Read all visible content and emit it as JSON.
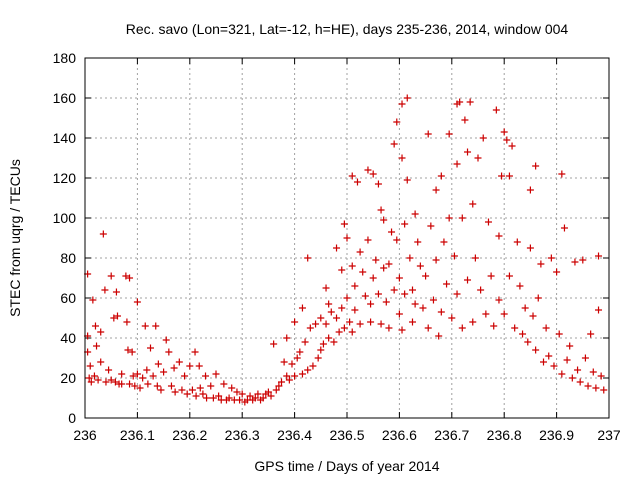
{
  "chart_data": {
    "type": "scatter",
    "title": "Rec. savo (Lon=321, Lat=-12, h=HE), days 235-236, 2014, window 004",
    "xlabel": "GPS time / Days of year 2014",
    "ylabel": "STEC from uqrg / TECUs",
    "xlim": [
      236,
      237
    ],
    "ylim": [
      0,
      180
    ],
    "grid": true,
    "marker": "plus",
    "color": "#cc0000",
    "x_ticks": [
      236,
      236.1,
      236.2,
      236.3,
      236.4,
      236.5,
      236.6,
      236.7,
      236.8,
      236.9,
      237
    ],
    "x_tick_labels": [
      "236",
      "236.1",
      "236.2",
      "236.3",
      "236.4",
      "236.5",
      "236.6",
      "236.7",
      "236.8",
      "236.9",
      "237"
    ],
    "y_ticks": [
      0,
      20,
      40,
      60,
      80,
      100,
      120,
      140,
      160,
      180
    ],
    "y_tick_labels": [
      "0",
      "20",
      "40",
      "60",
      "80",
      "100",
      "120",
      "140",
      "160",
      "180"
    ],
    "series": [
      {
        "name": "STEC",
        "points": [
          [
            236.005,
            72
          ],
          [
            236.005,
            41
          ],
          [
            236.005,
            33
          ],
          [
            236.01,
            26
          ],
          [
            236.008,
            20
          ],
          [
            236.012,
            18
          ],
          [
            236.015,
            59
          ],
          [
            236.02,
            46
          ],
          [
            236.022,
            36
          ],
          [
            236.018,
            21
          ],
          [
            236.025,
            19
          ],
          [
            236.03,
            43
          ],
          [
            236.03,
            28
          ],
          [
            236.035,
            92
          ],
          [
            236.038,
            64
          ],
          [
            236.04,
            18
          ],
          [
            236.045,
            24
          ],
          [
            236.05,
            71
          ],
          [
            236.05,
            19
          ],
          [
            236.055,
            50
          ],
          [
            236.058,
            18
          ],
          [
            236.06,
            63
          ],
          [
            236.062,
            51
          ],
          [
            236.065,
            17
          ],
          [
            236.07,
            22
          ],
          [
            236.07,
            17
          ],
          [
            236.078,
            71
          ],
          [
            236.08,
            48
          ],
          [
            236.082,
            34
          ],
          [
            236.085,
            70
          ],
          [
            236.085,
            17
          ],
          [
            236.09,
            33
          ],
          [
            236.092,
            21
          ],
          [
            236.095,
            16
          ],
          [
            236.1,
            58
          ],
          [
            236.1,
            22
          ],
          [
            236.105,
            15
          ],
          [
            236.11,
            20
          ],
          [
            236.115,
            46
          ],
          [
            236.118,
            24
          ],
          [
            236.12,
            17
          ],
          [
            236.125,
            35
          ],
          [
            236.13,
            21
          ],
          [
            236.135,
            46
          ],
          [
            236.138,
            16
          ],
          [
            236.14,
            27
          ],
          [
            236.145,
            14
          ],
          [
            236.15,
            23
          ],
          [
            236.155,
            39
          ],
          [
            236.16,
            33
          ],
          [
            236.165,
            16
          ],
          [
            236.17,
            25
          ],
          [
            236.172,
            13
          ],
          [
            236.18,
            28
          ],
          [
            236.185,
            14
          ],
          [
            236.19,
            21
          ],
          [
            236.195,
            12
          ],
          [
            236.2,
            26
          ],
          [
            236.205,
            14
          ],
          [
            236.21,
            33
          ],
          [
            236.212,
            11
          ],
          [
            236.218,
            26
          ],
          [
            236.22,
            15
          ],
          [
            236.225,
            12
          ],
          [
            236.23,
            21
          ],
          [
            236.232,
            10
          ],
          [
            236.24,
            16
          ],
          [
            236.245,
            10
          ],
          [
            236.25,
            22
          ],
          [
            236.255,
            11
          ],
          [
            236.26,
            9
          ],
          [
            236.265,
            17
          ],
          [
            236.27,
            9
          ],
          [
            236.275,
            10
          ],
          [
            236.28,
            15
          ],
          [
            236.285,
            9
          ],
          [
            236.29,
            13
          ],
          [
            236.295,
            9
          ],
          [
            236.3,
            12
          ],
          [
            236.305,
            8
          ],
          [
            236.31,
            9
          ],
          [
            236.315,
            11
          ],
          [
            236.32,
            9
          ],
          [
            236.325,
            10
          ],
          [
            236.33,
            12
          ],
          [
            236.335,
            9
          ],
          [
            236.34,
            10
          ],
          [
            236.345,
            12
          ],
          [
            236.35,
            13
          ],
          [
            236.355,
            11
          ],
          [
            236.36,
            37
          ],
          [
            236.365,
            14
          ],
          [
            236.37,
            16
          ],
          [
            236.375,
            18
          ],
          [
            236.38,
            28
          ],
          [
            236.385,
            21
          ],
          [
            236.385,
            40
          ],
          [
            236.39,
            19
          ],
          [
            236.395,
            27
          ],
          [
            236.4,
            48
          ],
          [
            236.4,
            21
          ],
          [
            236.405,
            30
          ],
          [
            236.41,
            33
          ],
          [
            236.415,
            55
          ],
          [
            236.415,
            22
          ],
          [
            236.42,
            38
          ],
          [
            236.425,
            80
          ],
          [
            236.425,
            24
          ],
          [
            236.43,
            45
          ],
          [
            236.435,
            26
          ],
          [
            236.44,
            47
          ],
          [
            236.445,
            30
          ],
          [
            236.45,
            50
          ],
          [
            236.45,
            34
          ],
          [
            236.455,
            37
          ],
          [
            236.46,
            65
          ],
          [
            236.46,
            47
          ],
          [
            236.465,
            57
          ],
          [
            236.465,
            40
          ],
          [
            236.47,
            53
          ],
          [
            236.475,
            38
          ],
          [
            236.48,
            85
          ],
          [
            236.48,
            50
          ],
          [
            236.485,
            43
          ],
          [
            236.49,
            74
          ],
          [
            236.49,
            55
          ],
          [
            236.495,
            97
          ],
          [
            236.495,
            45
          ],
          [
            236.5,
            90
          ],
          [
            236.5,
            60
          ],
          [
            236.505,
            48
          ],
          [
            236.51,
            121
          ],
          [
            236.51,
            76
          ],
          [
            236.51,
            43
          ],
          [
            236.515,
            66
          ],
          [
            236.515,
            54
          ],
          [
            236.52,
            118
          ],
          [
            236.525,
            83
          ],
          [
            236.525,
            47
          ],
          [
            236.53,
            73
          ],
          [
            236.535,
            61
          ],
          [
            236.54,
            124
          ],
          [
            236.54,
            89
          ],
          [
            236.545,
            57
          ],
          [
            236.545,
            48
          ],
          [
            236.55,
            122
          ],
          [
            236.55,
            70
          ],
          [
            236.555,
            79
          ],
          [
            236.56,
            117
          ],
          [
            236.56,
            62
          ],
          [
            236.565,
            104
          ],
          [
            236.565,
            47
          ],
          [
            236.57,
            99
          ],
          [
            236.57,
            75
          ],
          [
            236.575,
            58
          ],
          [
            236.58,
            77
          ],
          [
            236.58,
            45
          ],
          [
            236.585,
            93
          ],
          [
            236.59,
            137
          ],
          [
            236.59,
            64
          ],
          [
            236.595,
            148
          ],
          [
            236.595,
            89
          ],
          [
            236.6,
            70
          ],
          [
            236.6,
            52
          ],
          [
            236.605,
            157
          ],
          [
            236.605,
            130
          ],
          [
            236.605,
            44
          ],
          [
            236.61,
            97
          ],
          [
            236.61,
            62
          ],
          [
            236.615,
            160
          ],
          [
            236.615,
            119
          ],
          [
            236.62,
            80
          ],
          [
            236.625,
            64
          ],
          [
            236.625,
            48
          ],
          [
            236.63,
            102
          ],
          [
            236.63,
            57
          ],
          [
            236.635,
            88
          ],
          [
            236.64,
            76
          ],
          [
            236.645,
            55
          ],
          [
            236.65,
            71
          ],
          [
            236.655,
            142
          ],
          [
            236.655,
            45
          ],
          [
            236.66,
            96
          ],
          [
            236.665,
            59
          ],
          [
            236.67,
            114
          ],
          [
            236.67,
            79
          ],
          [
            236.675,
            41
          ],
          [
            236.68,
            121
          ],
          [
            236.68,
            53
          ],
          [
            236.685,
            88
          ],
          [
            236.69,
            67
          ],
          [
            236.695,
            142
          ],
          [
            236.695,
            100
          ],
          [
            236.7,
            50
          ],
          [
            236.705,
            81
          ],
          [
            236.71,
            157
          ],
          [
            236.71,
            127
          ],
          [
            236.71,
            62
          ],
          [
            236.715,
            158
          ],
          [
            236.72,
            100
          ],
          [
            236.72,
            45
          ],
          [
            236.725,
            149
          ],
          [
            236.73,
            133
          ],
          [
            236.73,
            69
          ],
          [
            236.735,
            158
          ],
          [
            236.74,
            107
          ],
          [
            236.74,
            48
          ],
          [
            236.745,
            80
          ],
          [
            236.75,
            130
          ],
          [
            236.755,
            64
          ],
          [
            236.76,
            140
          ],
          [
            236.765,
            52
          ],
          [
            236.77,
            98
          ],
          [
            236.775,
            71
          ],
          [
            236.78,
            46
          ],
          [
            236.785,
            154
          ],
          [
            236.79,
            91
          ],
          [
            236.79,
            59
          ],
          [
            236.795,
            121
          ],
          [
            236.8,
            143
          ],
          [
            236.8,
            52
          ],
          [
            236.805,
            139
          ],
          [
            236.81,
            121
          ],
          [
            236.81,
            71
          ],
          [
            236.815,
            136
          ],
          [
            236.82,
            45
          ],
          [
            236.825,
            88
          ],
          [
            236.83,
            66
          ],
          [
            236.835,
            42
          ],
          [
            236.84,
            55
          ],
          [
            236.845,
            38
          ],
          [
            236.85,
            114
          ],
          [
            236.85,
            85
          ],
          [
            236.855,
            51
          ],
          [
            236.86,
            126
          ],
          [
            236.86,
            34
          ],
          [
            236.865,
            60
          ],
          [
            236.87,
            77
          ],
          [
            236.875,
            28
          ],
          [
            236.88,
            45
          ],
          [
            236.885,
            31
          ],
          [
            236.89,
            80
          ],
          [
            236.895,
            26
          ],
          [
            236.9,
            73
          ],
          [
            236.905,
            42
          ],
          [
            236.91,
            122
          ],
          [
            236.91,
            22
          ],
          [
            236.915,
            95
          ],
          [
            236.92,
            29
          ],
          [
            236.925,
            36
          ],
          [
            236.93,
            20
          ],
          [
            236.935,
            78
          ],
          [
            236.94,
            24
          ],
          [
            236.945,
            18
          ],
          [
            236.95,
            79
          ],
          [
            236.955,
            30
          ],
          [
            236.96,
            16
          ],
          [
            236.965,
            42
          ],
          [
            236.97,
            23
          ],
          [
            236.975,
            15
          ],
          [
            236.98,
            81
          ],
          [
            236.98,
            54
          ],
          [
            236.985,
            21
          ],
          [
            236.99,
            14
          ]
        ]
      }
    ]
  }
}
